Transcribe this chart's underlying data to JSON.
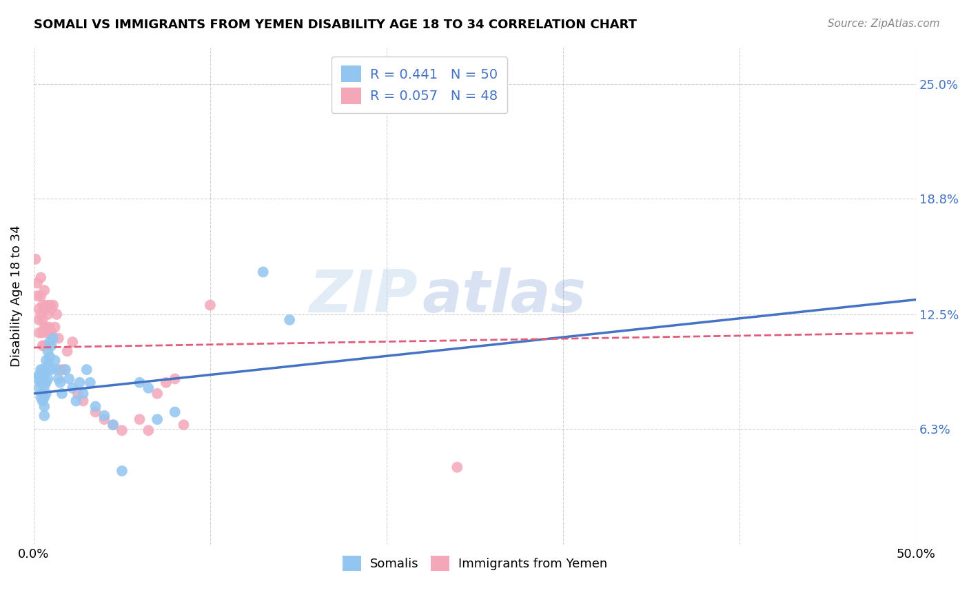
{
  "title": "SOMALI VS IMMIGRANTS FROM YEMEN DISABILITY AGE 18 TO 34 CORRELATION CHART",
  "source": "Source: ZipAtlas.com",
  "ylabel": "Disability Age 18 to 34",
  "ytick_labels": [
    "6.3%",
    "12.5%",
    "18.8%",
    "25.0%"
  ],
  "ytick_values": [
    0.063,
    0.125,
    0.188,
    0.25
  ],
  "xlim": [
    0.0,
    0.5
  ],
  "ylim": [
    0.0,
    0.27
  ],
  "legend_somali_r": "0.441",
  "legend_somali_n": "50",
  "legend_yemen_r": "0.057",
  "legend_yemen_n": "48",
  "somali_color": "#92C5F0",
  "yemen_color": "#F4A7B9",
  "somali_line_color": "#4472C4",
  "yemen_line_color": "#E05C7A",
  "watermark_zip": "ZIP",
  "watermark_atlas": "atlas",
  "background_color": "#FFFFFF",
  "grid_color": "#CCCCCC",
  "somali_x": [
    0.002,
    0.003,
    0.003,
    0.004,
    0.004,
    0.004,
    0.005,
    0.005,
    0.005,
    0.005,
    0.006,
    0.006,
    0.006,
    0.006,
    0.006,
    0.007,
    0.007,
    0.007,
    0.007,
    0.008,
    0.008,
    0.008,
    0.009,
    0.009,
    0.01,
    0.01,
    0.011,
    0.012,
    0.013,
    0.014,
    0.015,
    0.016,
    0.018,
    0.02,
    0.022,
    0.024,
    0.026,
    0.028,
    0.03,
    0.032,
    0.035,
    0.04,
    0.045,
    0.05,
    0.06,
    0.065,
    0.07,
    0.08,
    0.13,
    0.145
  ],
  "somali_y": [
    0.09,
    0.085,
    0.092,
    0.088,
    0.095,
    0.08,
    0.095,
    0.088,
    0.082,
    0.078,
    0.092,
    0.086,
    0.08,
    0.075,
    0.07,
    0.1,
    0.094,
    0.088,
    0.082,
    0.105,
    0.098,
    0.09,
    0.11,
    0.102,
    0.108,
    0.095,
    0.112,
    0.1,
    0.095,
    0.09,
    0.088,
    0.082,
    0.095,
    0.09,
    0.085,
    0.078,
    0.088,
    0.082,
    0.095,
    0.088,
    0.075,
    0.07,
    0.065,
    0.04,
    0.088,
    0.085,
    0.068,
    0.072,
    0.148,
    0.122
  ],
  "yemen_x": [
    0.001,
    0.002,
    0.002,
    0.003,
    0.003,
    0.003,
    0.004,
    0.004,
    0.004,
    0.005,
    0.005,
    0.005,
    0.005,
    0.006,
    0.006,
    0.006,
    0.006,
    0.007,
    0.007,
    0.007,
    0.008,
    0.008,
    0.009,
    0.009,
    0.01,
    0.01,
    0.011,
    0.012,
    0.013,
    0.014,
    0.015,
    0.017,
    0.019,
    0.022,
    0.025,
    0.028,
    0.035,
    0.04,
    0.045,
    0.05,
    0.06,
    0.065,
    0.07,
    0.075,
    0.08,
    0.085,
    0.24,
    0.1
  ],
  "yemen_y": [
    0.155,
    0.142,
    0.135,
    0.128,
    0.122,
    0.115,
    0.145,
    0.135,
    0.125,
    0.13,
    0.122,
    0.115,
    0.108,
    0.138,
    0.128,
    0.118,
    0.108,
    0.13,
    0.118,
    0.108,
    0.125,
    0.115,
    0.13,
    0.118,
    0.128,
    0.115,
    0.13,
    0.118,
    0.125,
    0.112,
    0.095,
    0.095,
    0.105,
    0.11,
    0.082,
    0.078,
    0.072,
    0.068,
    0.065,
    0.062,
    0.068,
    0.062,
    0.082,
    0.088,
    0.09,
    0.065,
    0.042,
    0.13
  ],
  "somali_line_x0": 0.0,
  "somali_line_y0": 0.082,
  "somali_line_x1": 0.5,
  "somali_line_y1": 0.133,
  "yemen_line_x0": 0.0,
  "yemen_line_y0": 0.107,
  "yemen_line_x1": 0.5,
  "yemen_line_y1": 0.115
}
